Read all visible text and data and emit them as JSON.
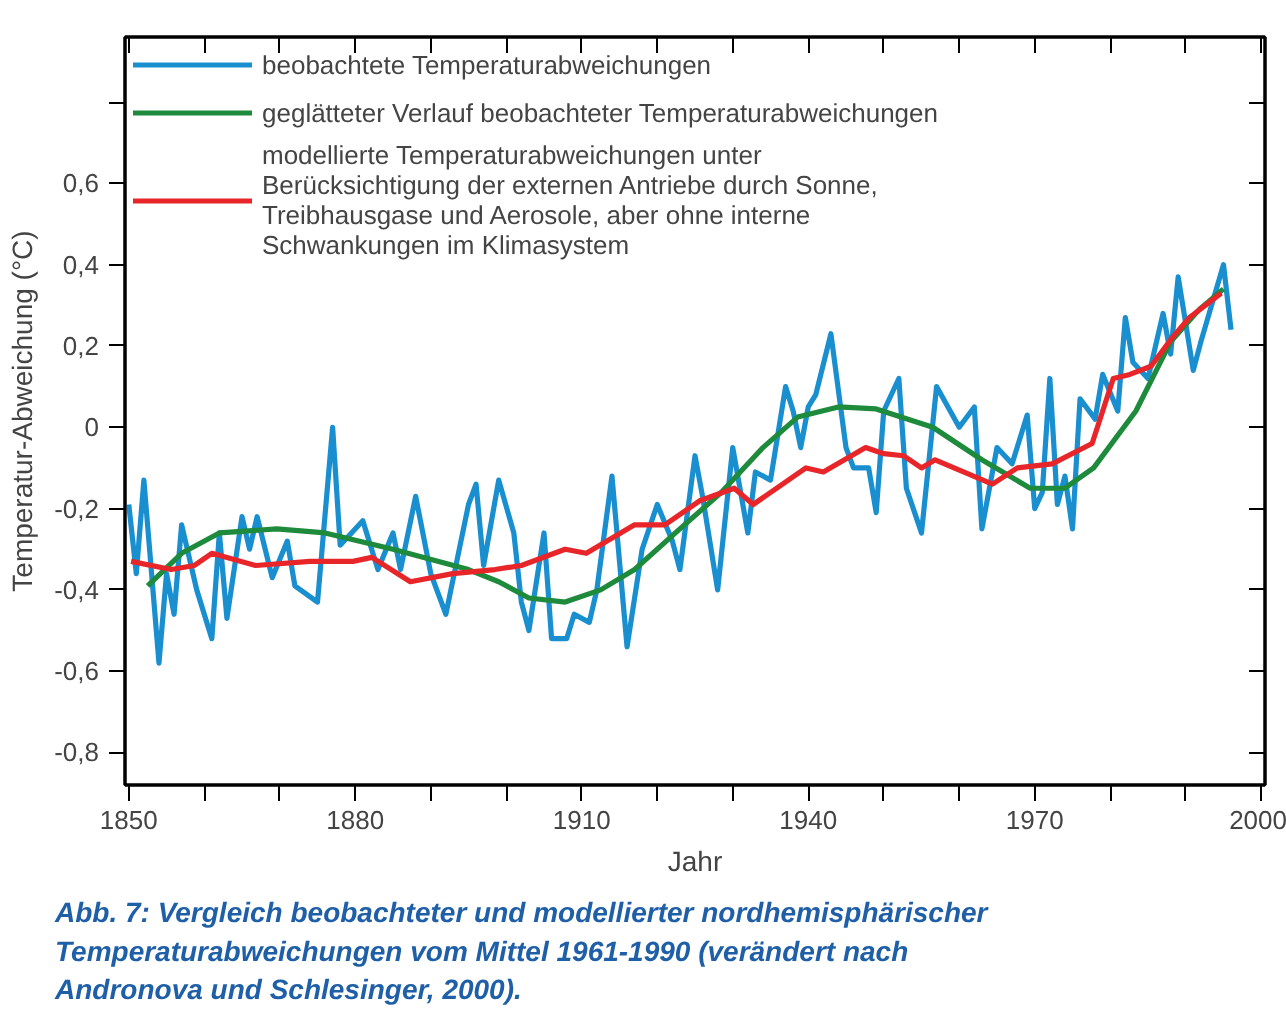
{
  "chart_data": {
    "type": "line",
    "xlabel": "Jahr",
    "ylabel": "Temperatur-Abweichung (°C)",
    "xlim": [
      1849.5,
      2000.5
    ],
    "ylim": [
      -0.88,
      0.96
    ],
    "xticks": [
      1850,
      {
        "value": 1860,
        "label": null
      },
      {
        "value": 1870,
        "label": null
      },
      1880,
      {
        "value": 1890,
        "label": null
      },
      {
        "value": 1900,
        "label": null
      },
      1910,
      {
        "value": 1920,
        "label": null
      },
      {
        "value": 1930,
        "label": null
      },
      1940,
      {
        "value": 1950,
        "label": null
      },
      {
        "value": 1960,
        "label": null
      },
      1970,
      {
        "value": 1980,
        "label": null
      },
      {
        "value": 1990,
        "label": null
      },
      2000
    ],
    "yticks": [
      {
        "value": -0.8,
        "label": "-0,8"
      },
      {
        "value": -0.6,
        "label": "-0,6"
      },
      {
        "value": -0.4,
        "label": "-0,4"
      },
      {
        "value": -0.2,
        "label": "-0,2"
      },
      0,
      {
        "value": 0.2,
        "label": "0,2"
      },
      {
        "value": 0.4,
        "label": "0,4"
      },
      {
        "value": 0.6,
        "label": "0,6"
      },
      {
        "value": 0.8,
        "label": null
      }
    ],
    "grid": false,
    "legend": "top left",
    "marker": "none",
    "line_style": "solid",
    "series": [
      {
        "name": "beobachtete Temperaturabweichungen",
        "color": "#1a8fd0",
        "x": [
          1850,
          1851,
          1852,
          1854,
          1855,
          1856,
          1857,
          1859,
          1861,
          1862,
          1863,
          1865,
          1866,
          1867,
          1869,
          1871,
          1872,
          1875,
          1877,
          1878,
          1881,
          1883,
          1885,
          1886,
          1888,
          1890,
          1892,
          1895,
          1896,
          1897,
          1899,
          1901,
          1902,
          1903,
          1905,
          1906,
          1908,
          1909,
          1911,
          1912,
          1914,
          1916,
          1918,
          1920,
          1922,
          1923,
          1925,
          1926,
          1928,
          1930,
          1932,
          1933,
          1935,
          1937,
          1938,
          1939,
          1940,
          1941,
          1943,
          1945,
          1946,
          1948,
          1949,
          1950,
          1952,
          1953,
          1955,
          1957,
          1960,
          1962,
          1963,
          1965,
          1967,
          1969,
          1970,
          1971,
          1972,
          1973,
          1974,
          1975,
          1976,
          1978,
          1979,
          1981,
          1982,
          1983,
          1985,
          1987,
          1988,
          1989,
          1991,
          1992,
          1995,
          1996
        ],
        "values": [
          -0.19,
          -0.36,
          -0.13,
          -0.58,
          -0.36,
          -0.46,
          -0.24,
          -0.4,
          -0.52,
          -0.26,
          -0.47,
          -0.22,
          -0.3,
          -0.22,
          -0.37,
          -0.28,
          -0.39,
          -0.43,
          0.0,
          -0.29,
          -0.23,
          -0.35,
          -0.26,
          -0.35,
          -0.17,
          -0.36,
          -0.46,
          -0.19,
          -0.14,
          -0.34,
          -0.13,
          -0.26,
          -0.43,
          -0.5,
          -0.26,
          -0.52,
          -0.52,
          -0.46,
          -0.48,
          -0.4,
          -0.12,
          -0.54,
          -0.3,
          -0.19,
          -0.28,
          -0.35,
          -0.07,
          -0.17,
          -0.4,
          -0.05,
          -0.26,
          -0.11,
          -0.13,
          0.1,
          0.04,
          -0.05,
          0.05,
          0.08,
          0.23,
          -0.05,
          -0.1,
          -0.1,
          -0.21,
          0.04,
          0.12,
          -0.15,
          -0.26,
          0.1,
          0.0,
          0.05,
          -0.25,
          -0.05,
          -0.09,
          0.03,
          -0.2,
          -0.16,
          0.12,
          -0.19,
          -0.12,
          -0.25,
          0.07,
          0.02,
          0.13,
          0.04,
          0.27,
          0.16,
          0.12,
          0.28,
          0.18,
          0.37,
          0.14,
          0.21,
          0.4,
          0.24
        ]
      },
      {
        "name": "geglätteter Verlauf beobachteter Temperaturabweichungen",
        "color": "#1e8a3c",
        "x": [
          1852.5,
          1857,
          1862,
          1869.6,
          1876,
          1885,
          1895,
          1899,
          1903,
          1907.8,
          1912.5,
          1917,
          1923,
          1928.5,
          1934,
          1938.6,
          1944,
          1949,
          1956.5,
          1963,
          1969.4,
          1974,
          1977.8,
          1983.4,
          1988,
          1991.8,
          1995
        ],
        "values": [
          -0.39,
          -0.31,
          -0.26,
          -0.25,
          -0.26,
          -0.3,
          -0.35,
          -0.38,
          -0.42,
          -0.43,
          -0.4,
          -0.35,
          -0.25,
          -0.16,
          -0.05,
          0.025,
          0.05,
          0.045,
          0.0,
          -0.08,
          -0.15,
          -0.15,
          -0.1,
          0.04,
          0.21,
          0.29,
          0.34
        ]
      },
      {
        "name": "modellierte Temperaturabweichungen unter\nBerücksichtigung der externen Antriebe durch Sonne,\nTreibhausgase und Aerosole, aber ohne interne\nSchwankungen im Klimasystem",
        "color": "#e8262a",
        "x": [
          1850.3,
          1855.6,
          1858.7,
          1861,
          1866.8,
          1874,
          1879.7,
          1882.2,
          1887.3,
          1892.9,
          1898.5,
          1902,
          1907.8,
          1910.6,
          1917,
          1921,
          1925.7,
          1930.2,
          1932.7,
          1939.7,
          1942,
          1947.6,
          1950,
          1952.6,
          1955,
          1956.8,
          1964.4,
          1967.7,
          1972.3,
          1977.6,
          1980.4,
          1982.6,
          1985.4,
          1988.2,
          1990.5,
          1994.7
        ],
        "values": [
          -0.33,
          -0.35,
          -0.34,
          -0.31,
          -0.34,
          -0.33,
          -0.33,
          -0.32,
          -0.38,
          -0.36,
          -0.35,
          -0.34,
          -0.3,
          -0.31,
          -0.24,
          -0.24,
          -0.18,
          -0.15,
          -0.19,
          -0.1,
          -0.11,
          -0.05,
          -0.065,
          -0.07,
          -0.1,
          -0.08,
          -0.14,
          -0.1,
          -0.09,
          -0.04,
          0.12,
          0.13,
          0.15,
          0.22,
          0.27,
          0.33
        ]
      }
    ],
    "annotations": [
      "Abb. 7: Vergleich beobachteter und modellierter nordhemisphärischer\nTemperaturabweichungen vom Mittel 1961-1990 (verändert nach\nAndronova und Schlesinger, 2000)."
    ]
  }
}
